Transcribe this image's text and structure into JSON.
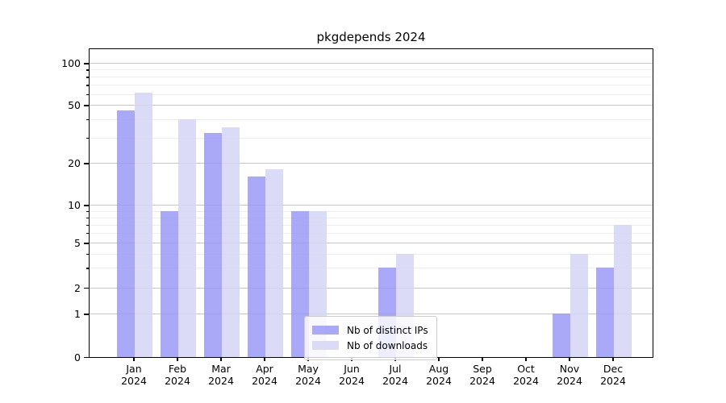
{
  "title": "pkgdepends 2024",
  "legend": {
    "items": [
      {
        "label": "Nb of distinct IPs",
        "slug": "distinct-ips",
        "swatch_color": "#a9a9f7"
      },
      {
        "label": "Nb of downloads",
        "slug": "downloads",
        "swatch_color": "#dbdbf8"
      }
    ]
  },
  "colors": {
    "bar_distinct_ips": "rgba(150,150,245,0.82)",
    "bar_downloads": "rgba(213,213,247,0.85)",
    "grid_major": "#c6c6c6",
    "grid_minor": "#ededed",
    "axis": "#000000",
    "background": "#ffffff"
  },
  "chart_data": {
    "type": "bar",
    "title": "pkgdepends 2024",
    "categories": [
      "Jan 2024",
      "Feb 2024",
      "Mar 2024",
      "Apr 2024",
      "May 2024",
      "Jun 2024",
      "Jul 2024",
      "Aug 2024",
      "Sep 2024",
      "Oct 2024",
      "Nov 2024",
      "Dec 2024"
    ],
    "series": [
      {
        "name": "Nb of distinct IPs",
        "slug": "distinct-ips",
        "color": "rgba(150,150,245,0.82)",
        "values": [
          46,
          9,
          32,
          16,
          9,
          0,
          3,
          0,
          0,
          0,
          1,
          3
        ]
      },
      {
        "name": "Nb of downloads",
        "slug": "downloads",
        "color": "rgba(213,213,247,0.85)",
        "values": [
          61,
          40,
          35,
          18,
          9,
          0,
          4,
          0,
          0,
          0,
          4,
          7
        ]
      }
    ],
    "xlabel": "",
    "ylabel": "",
    "yscale": "symlog",
    "ylim": [
      0,
      115
    ],
    "yticks": [
      0,
      1,
      2,
      5,
      10,
      20,
      50,
      100
    ],
    "minor_yticks": [
      3,
      4,
      6,
      7,
      8,
      9,
      30,
      40,
      60,
      70,
      80,
      90
    ],
    "grid": "both",
    "legend_position": "lower center"
  }
}
